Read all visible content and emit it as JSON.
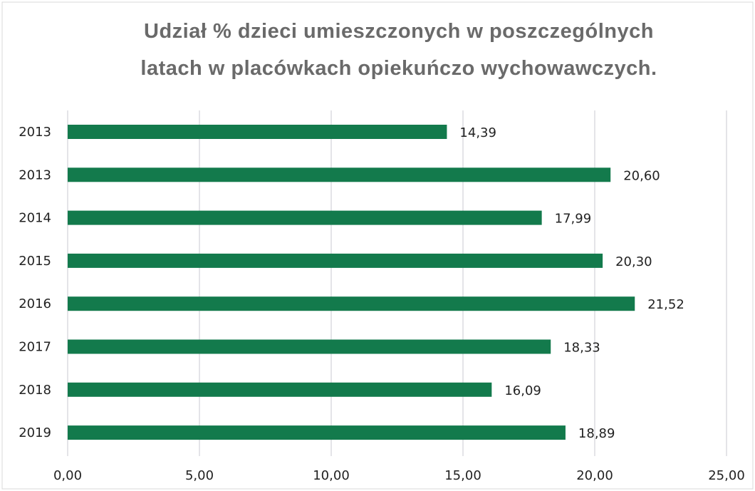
{
  "chart_data": {
    "type": "barh",
    "title": "Udział % dzieci umieszczonych w poszczególnych latach w placówkach opiekuńczo wychowawczych.",
    "categories": [
      "2013",
      "2013",
      "2014",
      "2015",
      "2016",
      "2017",
      "2018",
      "2019"
    ],
    "values": [
      14.39,
      20.6,
      17.99,
      20.3,
      21.52,
      18.33,
      16.09,
      18.89
    ],
    "value_labels": [
      "14,39",
      "20,60",
      "17,99",
      "20,30",
      "21,52",
      "18,33",
      "16,09",
      "18,89"
    ],
    "color": "#137a4c",
    "xlim": [
      0,
      25
    ],
    "xticks": [
      {
        "value": 0,
        "label": "0,00"
      },
      {
        "value": 5,
        "label": "5,00"
      },
      {
        "value": 10,
        "label": "10,00"
      },
      {
        "value": 15,
        "label": "15,00"
      },
      {
        "value": 20,
        "label": "20,00"
      },
      {
        "value": 25,
        "label": "25,00"
      }
    ],
    "grid": true
  }
}
